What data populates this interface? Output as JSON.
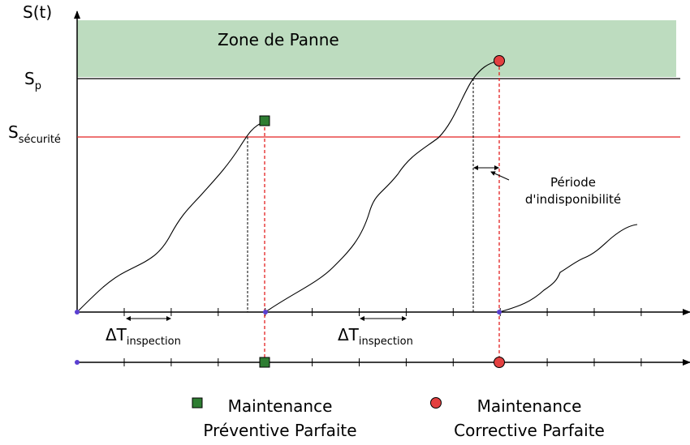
{
  "axis": {
    "y_label": "S(t)"
  },
  "zone": "Zone de Panne",
  "thresholds": [
    {
      "symbol": "S",
      "subscript": "p"
    },
    {
      "symbol": "S",
      "subscript": "sécurité"
    }
  ],
  "downtime": [
    "Période",
    "d'indisponibilité"
  ],
  "intervals": [
    {
      "symbol": "ΔT",
      "subscript": "inspection"
    },
    {
      "symbol": "ΔT",
      "subscript": "inspection"
    }
  ],
  "legend": [
    {
      "lines": [
        "Maintenance",
        "Préventive Parfaite"
      ]
    },
    {
      "lines": [
        "Maintenance",
        "Corrective Parfaite"
      ]
    }
  ]
}
